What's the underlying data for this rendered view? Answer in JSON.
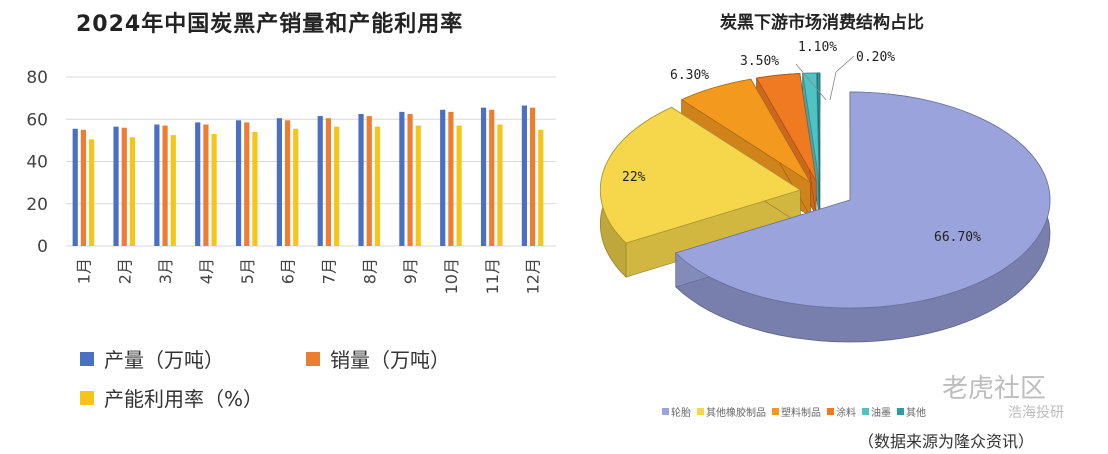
{
  "left_chart": {
    "title": "2024年中国炭黑产销量和产能利用率",
    "chart_data": {
      "type": "bar",
      "categories": [
        "1月",
        "2月",
        "3月",
        "4月",
        "5月",
        "6月",
        "7月",
        "8月",
        "9月",
        "10月",
        "11月",
        "12月"
      ],
      "series": [
        {
          "name": "产量（万吨）",
          "color": "#4a6fc3",
          "values": [
            55.5,
            56.5,
            57.5,
            58.5,
            59.5,
            60.5,
            61.5,
            62.5,
            63.5,
            64.5,
            65.5,
            66.5
          ]
        },
        {
          "name": "销量（万吨）",
          "color": "#ed7d31",
          "values": [
            55,
            56,
            57,
            57.5,
            58.5,
            59.5,
            60.5,
            61.5,
            62.5,
            63.5,
            64.5,
            65.5
          ]
        },
        {
          "name": "产能利用率（%）",
          "color": "#f5c518",
          "values": [
            50.5,
            51.5,
            52.5,
            53,
            54,
            55.5,
            56.5,
            56.5,
            57,
            57,
            57.5,
            55
          ]
        }
      ],
      "yticks": [
        0,
        20,
        40,
        60,
        80
      ],
      "ylim": [
        0,
        80
      ],
      "grid": true,
      "legend": "bottom"
    }
  },
  "right_chart": {
    "title": "炭黑下游市场消费结构占比",
    "chart_data": {
      "type": "pie",
      "slices": [
        {
          "name": "轮胎",
          "value": 66.7,
          "label": "66.70%",
          "color": "#9aa3dc"
        },
        {
          "name": "其他橡胶制品",
          "value": 22,
          "label": "22%",
          "color": "#f6d64a"
        },
        {
          "name": "塑料制品",
          "value": 6.3,
          "label": "6.30%",
          "color": "#f39a1e"
        },
        {
          "name": "涂料",
          "value": 3.5,
          "label": "3.50%",
          "color": "#f07a22"
        },
        {
          "name": "油墨",
          "value": 1.1,
          "label": "1.10%",
          "color": "#4fc3c4"
        },
        {
          "name": "其他",
          "value": 0.2,
          "label": "0.20%",
          "color": "#2e9aa3"
        }
      ],
      "legend": "bottom"
    },
    "source_note": "（数据来源为隆众资讯）"
  },
  "watermarks": {
    "tiger": "老虎社区",
    "author": "浩海投研"
  }
}
